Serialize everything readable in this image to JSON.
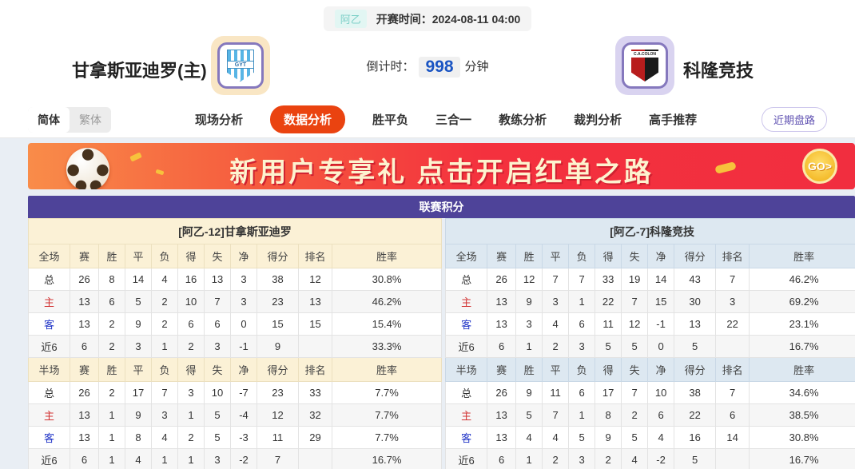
{
  "header": {
    "league_badge": "阿乙",
    "kickoff_label": "开赛时间：",
    "kickoff_time": "2024-08-11 04:00",
    "home_team": "甘拿斯亚迪罗(主)",
    "away_team": "科隆竞技",
    "home_logo_text": "GYT",
    "away_logo_text": "C.A.COLON",
    "countdown_label": "倒计时：",
    "countdown_value": "998",
    "countdown_unit": "分钟"
  },
  "nav": {
    "lang_simplified": "简体",
    "lang_traditional": "繁体",
    "tabs": [
      "现场分析",
      "数据分析",
      "胜平负",
      "三合一",
      "教练分析",
      "裁判分析",
      "高手推荐"
    ],
    "active_tab": "数据分析",
    "recent_button": "近期盘路"
  },
  "banner": {
    "text": "新用户专享礼  点击开启红单之路",
    "go_label": "GO>",
    "bg_left": "#f98c49",
    "bg_right": "#f12e3f",
    "text_color": "#fdf3cf"
  },
  "table": {
    "title": "联赛积分",
    "columns_full": [
      "全场",
      "赛",
      "胜",
      "平",
      "负",
      "得",
      "失",
      "净",
      "得分",
      "排名",
      "胜率"
    ],
    "columns_half": [
      "半场",
      "赛",
      "胜",
      "平",
      "负",
      "得",
      "失",
      "净",
      "得分",
      "排名",
      "胜率"
    ],
    "label_colors": {
      "总": "#333333",
      "主": "#d23333",
      "客": "#2438c8",
      "近6": "#333333"
    },
    "theme_colors": {
      "header_purple": "#4e4399",
      "home_cream": "#fbf1d6",
      "away_blue": "#dde8f1"
    },
    "home": {
      "title": "[阿乙-12]甘拿斯亚迪罗",
      "full": [
        {
          "label": "总",
          "cells": [
            "26",
            "8",
            "14",
            "4",
            "16",
            "13",
            "3",
            "38",
            "12",
            "30.8%"
          ]
        },
        {
          "label": "主",
          "cells": [
            "13",
            "6",
            "5",
            "2",
            "10",
            "7",
            "3",
            "23",
            "13",
            "46.2%"
          ]
        },
        {
          "label": "客",
          "cells": [
            "13",
            "2",
            "9",
            "2",
            "6",
            "6",
            "0",
            "15",
            "15",
            "15.4%"
          ]
        },
        {
          "label": "近6",
          "cells": [
            "6",
            "2",
            "3",
            "1",
            "2",
            "3",
            "-1",
            "9",
            "",
            "33.3%"
          ]
        }
      ],
      "half": [
        {
          "label": "总",
          "cells": [
            "26",
            "2",
            "17",
            "7",
            "3",
            "10",
            "-7",
            "23",
            "33",
            "7.7%"
          ]
        },
        {
          "label": "主",
          "cells": [
            "13",
            "1",
            "9",
            "3",
            "1",
            "5",
            "-4",
            "12",
            "32",
            "7.7%"
          ]
        },
        {
          "label": "客",
          "cells": [
            "13",
            "1",
            "8",
            "4",
            "2",
            "5",
            "-3",
            "11",
            "29",
            "7.7%"
          ]
        },
        {
          "label": "近6",
          "cells": [
            "6",
            "1",
            "4",
            "1",
            "1",
            "3",
            "-2",
            "7",
            "",
            "16.7%"
          ]
        }
      ]
    },
    "away": {
      "title": "[阿乙-7]科隆竞技",
      "full": [
        {
          "label": "总",
          "cells": [
            "26",
            "12",
            "7",
            "7",
            "33",
            "19",
            "14",
            "43",
            "7",
            "46.2%"
          ]
        },
        {
          "label": "主",
          "cells": [
            "13",
            "9",
            "3",
            "1",
            "22",
            "7",
            "15",
            "30",
            "3",
            "69.2%"
          ]
        },
        {
          "label": "客",
          "cells": [
            "13",
            "3",
            "4",
            "6",
            "11",
            "12",
            "-1",
            "13",
            "22",
            "23.1%"
          ]
        },
        {
          "label": "近6",
          "cells": [
            "6",
            "1",
            "2",
            "3",
            "5",
            "5",
            "0",
            "5",
            "",
            "16.7%"
          ]
        }
      ],
      "half": [
        {
          "label": "总",
          "cells": [
            "26",
            "9",
            "11",
            "6",
            "17",
            "7",
            "10",
            "38",
            "7",
            "34.6%"
          ]
        },
        {
          "label": "主",
          "cells": [
            "13",
            "5",
            "7",
            "1",
            "8",
            "2",
            "6",
            "22",
            "6",
            "38.5%"
          ]
        },
        {
          "label": "客",
          "cells": [
            "13",
            "4",
            "4",
            "5",
            "9",
            "5",
            "4",
            "16",
            "14",
            "30.8%"
          ]
        },
        {
          "label": "近6",
          "cells": [
            "6",
            "1",
            "2",
            "3",
            "2",
            "4",
            "-2",
            "5",
            "",
            "16.7%"
          ]
        }
      ]
    }
  }
}
